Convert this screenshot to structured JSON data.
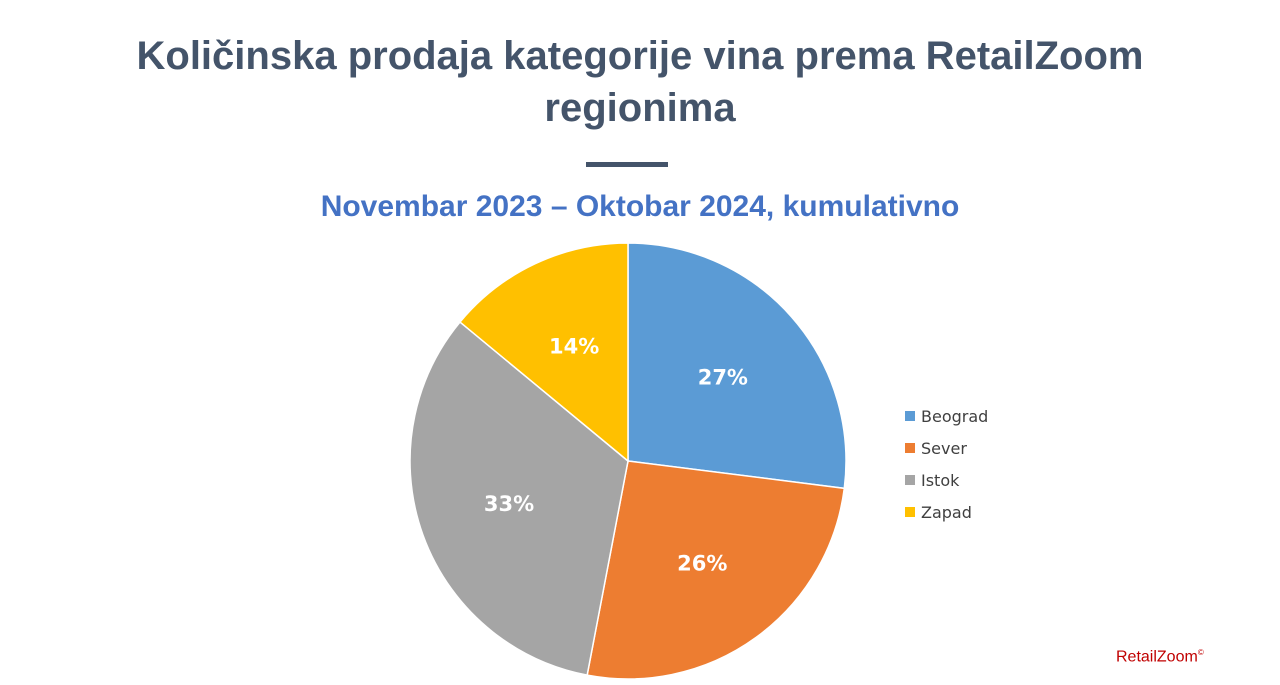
{
  "header": {
    "title_line1": "Količinska prodaja kategorije vina prema RetailZoom",
    "title_line2": "regionima",
    "subtitle": "Novembar 2023 – Oktobar 2024, kumulativno"
  },
  "chart_data": {
    "type": "pie",
    "title": "Količinska prodaja kategorije vina prema RetailZoom regionima",
    "subtitle": "Novembar 2023 – Oktobar 2024, kumulativno",
    "categories": [
      "Beograd",
      "Sever",
      "Istok",
      "Zapad"
    ],
    "values": [
      27,
      26,
      33,
      14
    ],
    "labels": [
      "27%",
      "26%",
      "33%",
      "14%"
    ],
    "colors": [
      "#5b9bd5",
      "#ed7d31",
      "#a5a5a5",
      "#ffc000"
    ],
    "start_angle": "12 o'clock",
    "direction": "clockwise",
    "legend_position": "right"
  },
  "brand": {
    "name": "RetailZoom",
    "mark": "©"
  }
}
